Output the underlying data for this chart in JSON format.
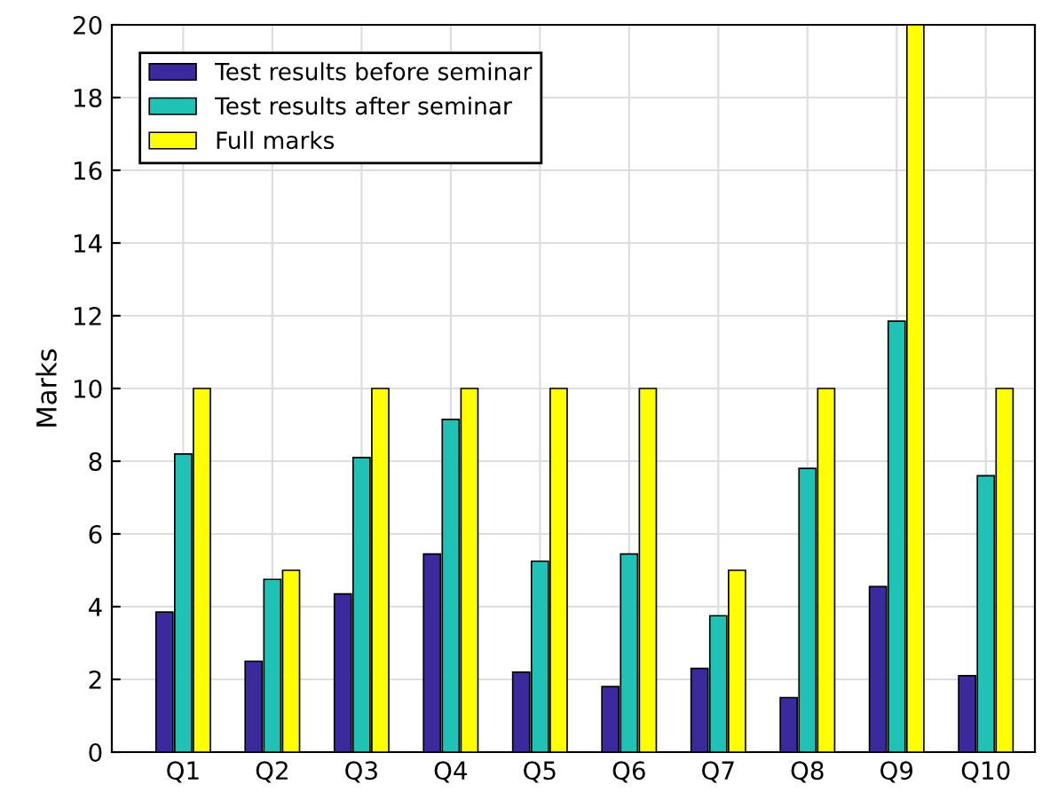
{
  "chart_data": {
    "type": "bar",
    "ylabel": "Marks",
    "categories": [
      "Q1",
      "Q2",
      "Q3",
      "Q4",
      "Q5",
      "Q6",
      "Q7",
      "Q8",
      "Q9",
      "Q10"
    ],
    "series": [
      {
        "name": "Test results before seminar",
        "color": "#3a2a9e",
        "values": [
          3.85,
          2.5,
          4.35,
          5.45,
          2.2,
          1.8,
          2.3,
          1.5,
          4.55,
          2.1
        ]
      },
      {
        "name": "Test results after seminar",
        "color": "#1fc2b4",
        "values": [
          8.2,
          4.75,
          8.1,
          9.15,
          5.25,
          5.45,
          3.75,
          7.8,
          11.85,
          7.6
        ]
      },
      {
        "name": "Full marks",
        "color": "#ffff00",
        "values": [
          10,
          5,
          10,
          10,
          10,
          10,
          5,
          10,
          20,
          10
        ]
      }
    ],
    "ylim": [
      0,
      20
    ],
    "yticks": [
      0,
      2,
      4,
      6,
      8,
      10,
      12,
      14,
      16,
      18,
      20
    ],
    "grid": true,
    "legend": "top left"
  }
}
